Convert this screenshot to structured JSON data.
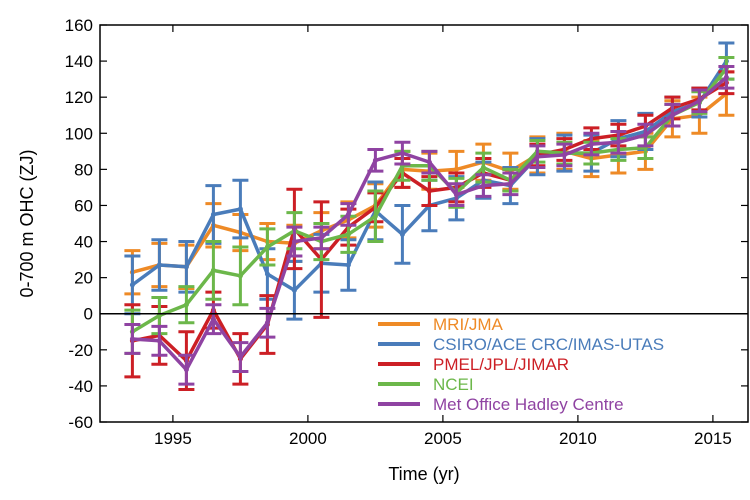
{
  "chart_data": {
    "type": "line",
    "xlabel": "Time (yr)",
    "ylabel": "0-700 m OHC (ZJ)",
    "xlim": [
      1992.3,
      2016.3
    ],
    "ylim": [
      -60,
      160
    ],
    "xticks": [
      1995,
      2000,
      2005,
      2010,
      2015
    ],
    "yticks": [
      -60,
      -40,
      -20,
      0,
      20,
      40,
      60,
      80,
      100,
      120,
      140,
      160
    ],
    "grid": false,
    "legend_position": "bottom-right",
    "x": [
      1993.5,
      1994.5,
      1995.5,
      1996.5,
      1997.5,
      1998.5,
      1999.5,
      2000.5,
      2001.5,
      2002.5,
      2003.5,
      2004.5,
      2005.5,
      2006.5,
      2007.5,
      2008.5,
      2009.5,
      2010.5,
      2011.5,
      2012.5,
      2013.5,
      2014.5,
      2015.5
    ],
    "series": [
      {
        "name": "MRI/JMA",
        "color": "#ee8a26",
        "values": [
          23,
          27,
          26,
          49,
          45,
          40,
          39,
          46,
          52,
          60,
          80,
          79,
          80,
          84,
          79,
          88,
          90,
          86,
          88,
          90,
          108,
          110,
          122
        ],
        "errors": [
          12,
          12,
          12,
          12,
          10,
          10,
          10,
          10,
          10,
          12,
          10,
          10,
          10,
          10,
          10,
          10,
          10,
          10,
          10,
          10,
          10,
          10,
          12
        ]
      },
      {
        "name": "CSIRO/ACE CRC/IMAS-UTAS",
        "color": "#4a7cba",
        "values": [
          16,
          27,
          26,
          55,
          58,
          22,
          13,
          28,
          27,
          57,
          44,
          60,
          64,
          74,
          71,
          87,
          89,
          89,
          97,
          101,
          112,
          117,
          140
        ],
        "errors": [
          16,
          14,
          14,
          16,
          16,
          14,
          16,
          16,
          14,
          16,
          16,
          14,
          12,
          10,
          10,
          10,
          10,
          10,
          10,
          10,
          8,
          8,
          10
        ]
      },
      {
        "name": "PMEL/JPL/JIMAR",
        "color": "#cc1f25",
        "values": [
          -15,
          -12,
          -26,
          2,
          -25,
          -6,
          47,
          30,
          48,
          59,
          78,
          68,
          70,
          78,
          74,
          88,
          91,
          97,
          99,
          104,
          114,
          119,
          128
        ],
        "errors": [
          20,
          16,
          16,
          10,
          14,
          16,
          22,
          32,
          10,
          8,
          8,
          8,
          8,
          8,
          6,
          6,
          6,
          6,
          6,
          6,
          6,
          6,
          6
        ]
      },
      {
        "name": "NCEI",
        "color": "#6cb74a",
        "values": [
          -10,
          -1,
          5,
          24,
          21,
          37,
          46,
          40,
          44,
          54,
          82,
          82,
          67,
          81,
          74,
          90,
          89,
          89,
          91,
          92,
          110,
          117,
          136
        ],
        "errors": [
          12,
          10,
          10,
          16,
          16,
          10,
          10,
          10,
          10,
          14,
          8,
          8,
          8,
          8,
          6,
          6,
          6,
          6,
          6,
          6,
          6,
          6,
          6
        ]
      },
      {
        "name": "Met Office Hadley Centre",
        "color": "#8f43a2",
        "values": [
          -14,
          -15,
          -31,
          -3,
          -24,
          -5,
          40,
          42,
          55,
          85,
          89,
          84,
          66,
          71,
          72,
          87,
          88,
          94,
          95,
          99,
          110,
          118,
          131
        ],
        "errors": [
          8,
          8,
          8,
          8,
          8,
          8,
          8,
          6,
          6,
          6,
          6,
          6,
          6,
          6,
          6,
          6,
          6,
          6,
          6,
          6,
          6,
          6,
          6
        ]
      }
    ]
  }
}
